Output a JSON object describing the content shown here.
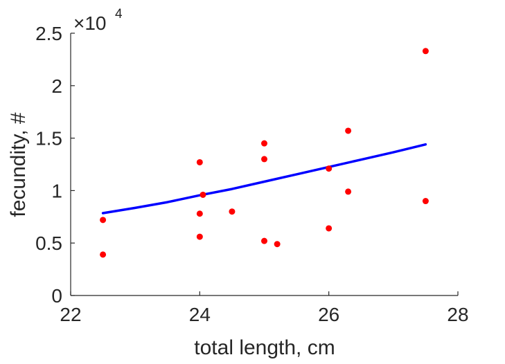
{
  "chart_data": {
    "type": "scatter",
    "xlabel": "total length, cm",
    "ylabel": "fecundity, #",
    "xlim": [
      22,
      28
    ],
    "ylim": [
      0,
      25000
    ],
    "xticks": [
      22,
      24,
      26,
      28
    ],
    "yticks": [
      0,
      5000,
      10000,
      15000,
      20000,
      25000
    ],
    "ytick_labels": [
      "0",
      "0.5",
      "1",
      "1.5",
      "2",
      "2.5"
    ],
    "y_exponent_label": {
      "base": "×10",
      "exponent": "4"
    },
    "grid": false,
    "points": [
      {
        "x": 22.5,
        "y": 7200
      },
      {
        "x": 22.5,
        "y": 3900
      },
      {
        "x": 24.0,
        "y": 12700
      },
      {
        "x": 24.05,
        "y": 9600
      },
      {
        "x": 24.0,
        "y": 7800
      },
      {
        "x": 24.0,
        "y": 5600
      },
      {
        "x": 24.5,
        "y": 8000
      },
      {
        "x": 25.0,
        "y": 14500
      },
      {
        "x": 25.0,
        "y": 13000
      },
      {
        "x": 25.0,
        "y": 5200
      },
      {
        "x": 25.2,
        "y": 4900
      },
      {
        "x": 26.0,
        "y": 12100
      },
      {
        "x": 26.0,
        "y": 6400
      },
      {
        "x": 26.3,
        "y": 15700
      },
      {
        "x": 26.3,
        "y": 9900
      },
      {
        "x": 27.5,
        "y": 23300
      },
      {
        "x": 27.5,
        "y": 9000
      }
    ],
    "fit_line": {
      "x": [
        22.5,
        23.0,
        23.5,
        24.0,
        24.5,
        25.0,
        25.5,
        26.0,
        26.5,
        27.0,
        27.5
      ],
      "y": [
        7850,
        8350,
        8900,
        9550,
        10150,
        10850,
        11550,
        12250,
        12950,
        13650,
        14400
      ]
    },
    "colors": {
      "points": "#ff0000",
      "fit_line": "#0000ff",
      "axes": "#262626"
    }
  }
}
